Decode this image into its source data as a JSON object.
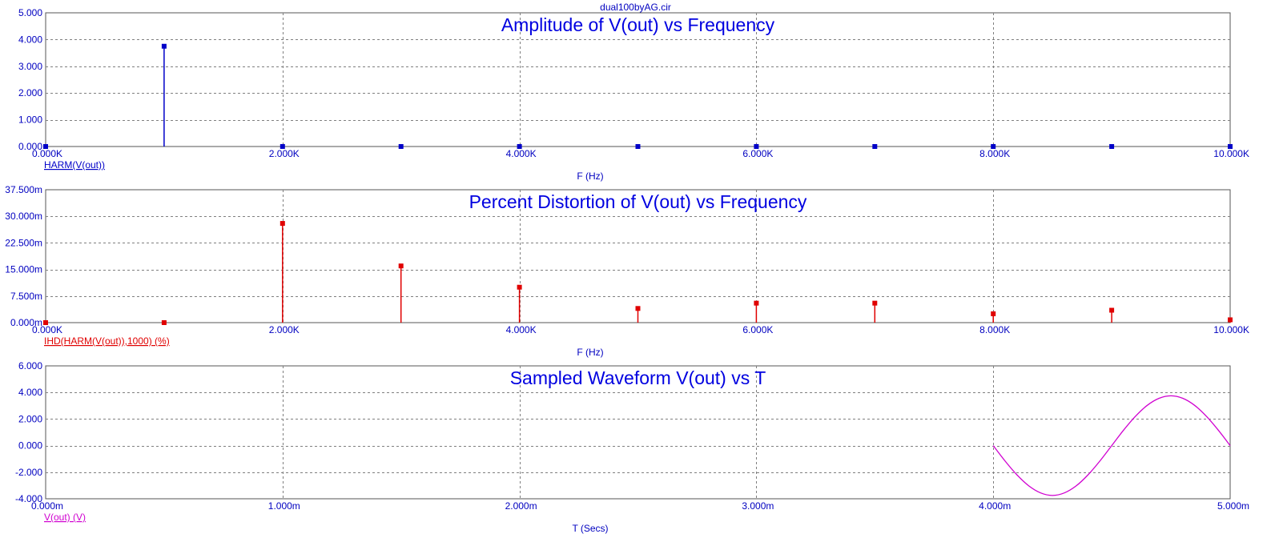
{
  "window": {
    "file_title": "dual100byAG.cir"
  },
  "chart_data": [
    {
      "type": "bar",
      "title": "Amplitude of V(out) vs Frequency",
      "xlabel": "F (Hz)",
      "legend": "HARM(V(out))",
      "legend_placement": "bottom-left",
      "color": "#0000c8",
      "grid": true,
      "xlim": [
        0,
        10000
      ],
      "ylim": [
        0,
        5
      ],
      "x_ticks": [
        0,
        2000,
        4000,
        6000,
        8000,
        10000
      ],
      "x_tick_labels": [
        "0.000K",
        "2.000K",
        "4.000K",
        "6.000K",
        "8.000K",
        "10.000K"
      ],
      "y_ticks": [
        0,
        1,
        2,
        3,
        4,
        5
      ],
      "y_tick_labels": [
        "0.000",
        "1.000",
        "2.000",
        "3.000",
        "4.000",
        "5.000"
      ],
      "x": [
        0,
        1000,
        2000,
        3000,
        4000,
        5000,
        6000,
        7000,
        8000,
        9000,
        10000
      ],
      "values": [
        0,
        3.75,
        0.001,
        0.0006,
        0.0004,
        0.0002,
        0.0002,
        0.0002,
        0.0001,
        0.0001,
        3e-05
      ]
    },
    {
      "type": "bar",
      "title": "Percent Distortion of V(out) vs Frequency",
      "xlabel": "F (Hz)",
      "legend": "IHD(HARM(V(out)),1000) (%)",
      "legend_placement": "bottom-left",
      "color": "#e00000",
      "grid": true,
      "xlim": [
        0,
        10000
      ],
      "ylim": [
        0,
        37.5
      ],
      "y_unit": "m",
      "x_ticks": [
        0,
        2000,
        4000,
        6000,
        8000,
        10000
      ],
      "x_tick_labels": [
        "0.000K",
        "2.000K",
        "4.000K",
        "6.000K",
        "8.000K",
        "10.000K"
      ],
      "y_ticks": [
        0,
        7.5,
        15,
        22.5,
        30,
        37.5
      ],
      "y_tick_labels": [
        "0.000m",
        "7.500m",
        "15.000m",
        "22.500m",
        "30.000m",
        "37.500m"
      ],
      "x": [
        0,
        1000,
        2000,
        3000,
        4000,
        5000,
        6000,
        7000,
        8000,
        9000,
        10000
      ],
      "values": [
        0,
        0,
        28,
        16,
        10,
        4,
        5.5,
        5.5,
        2.5,
        3.5,
        0.8
      ]
    },
    {
      "type": "line",
      "title": "Sampled Waveform  V(out) vs T",
      "xlabel": "T (Secs)",
      "legend": "V(out) (V)",
      "legend_placement": "bottom-left",
      "color": "#d000d0",
      "grid": true,
      "xlim": [
        0,
        5
      ],
      "x_unit": "m",
      "ylim": [
        -4,
        6
      ],
      "x_ticks": [
        0,
        1,
        2,
        3,
        4,
        5
      ],
      "x_tick_labels": [
        "0.000m",
        "1.000m",
        "2.000m",
        "3.000m",
        "4.000m",
        "5.000m"
      ],
      "y_ticks": [
        -4,
        -2,
        0,
        2,
        4,
        6
      ],
      "y_tick_labels": [
        "-4.000",
        "-2.000",
        "0.000",
        "2.000",
        "4.000",
        "6.000"
      ],
      "x": [
        4.0,
        4.05,
        4.1,
        4.15,
        4.2,
        4.25,
        4.3,
        4.35,
        4.4,
        4.45,
        4.5,
        4.55,
        4.6,
        4.65,
        4.7,
        4.75,
        4.8,
        4.85,
        4.9,
        4.95,
        5.0
      ],
      "values": [
        0,
        -1.16,
        -2.2,
        -3.03,
        -3.56,
        -3.75,
        -3.56,
        -3.03,
        -2.2,
        -1.16,
        0,
        1.16,
        2.2,
        3.03,
        3.56,
        3.75,
        3.56,
        3.03,
        2.2,
        1.16,
        0
      ]
    }
  ]
}
